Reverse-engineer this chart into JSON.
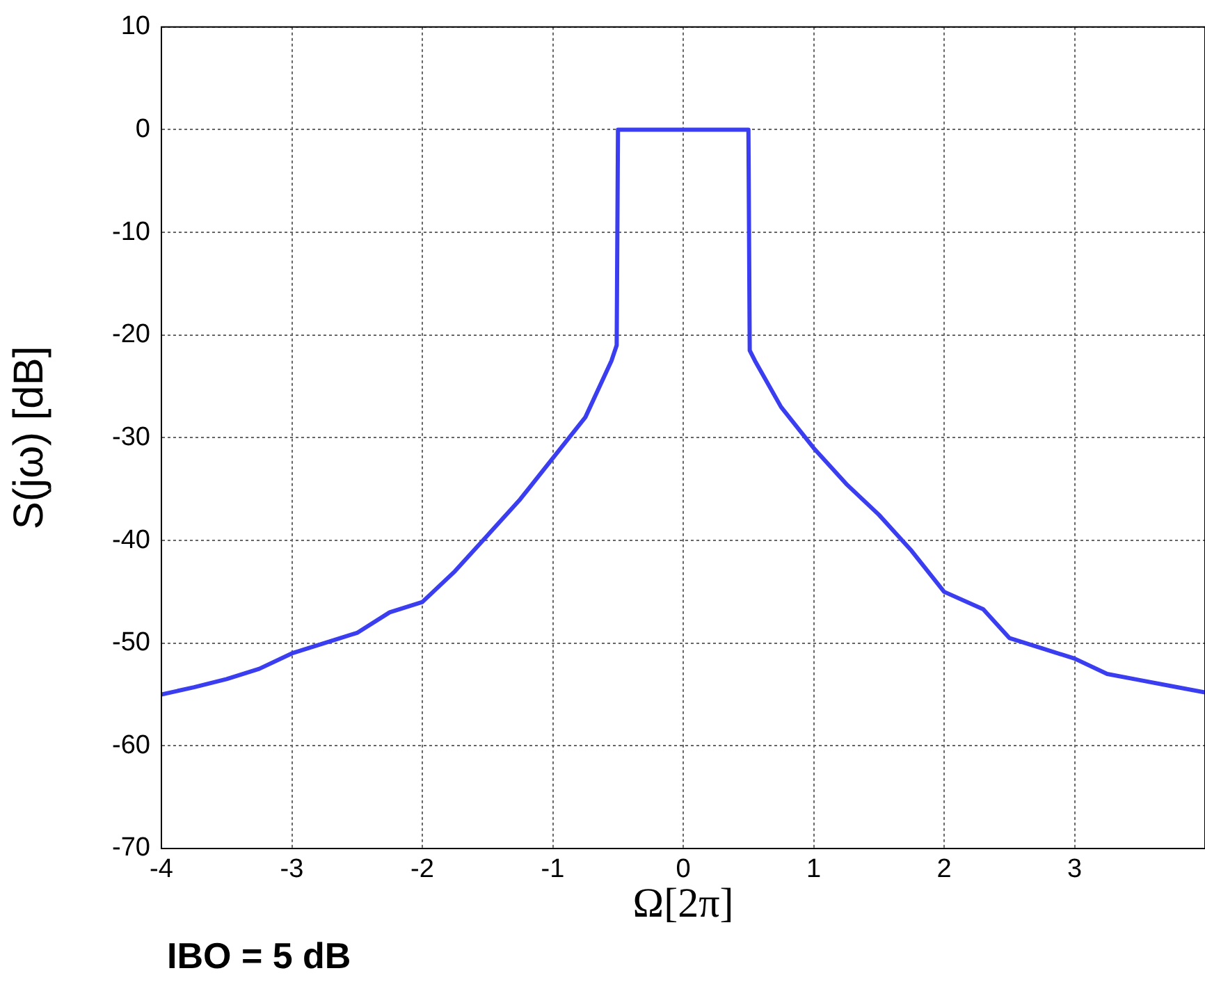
{
  "chart_data": {
    "type": "line",
    "xlabel": "Ω[2π]",
    "ylabel": "S(jω) [dB]",
    "annotations": [
      "IBO = 5 dB"
    ],
    "x": [
      -4,
      -3.75,
      -3.5,
      -3.25,
      -3,
      -2.75,
      -2.5,
      -2.25,
      -2,
      -1.75,
      -1.5,
      -1.25,
      -1,
      -0.75,
      -0.55,
      -0.51,
      -0.5,
      -0.25,
      0,
      0.25,
      0.5,
      0.51,
      0.55,
      0.75,
      1,
      1.25,
      1.5,
      1.75,
      2,
      2.3,
      2.5,
      2.75,
      3,
      3.25,
      3.5,
      3.75,
      4
    ],
    "series": [
      {
        "color": "#3a3ef0",
        "values": [
          -55,
          -54.3,
          -53.5,
          -52.5,
          -51,
          -50,
          -49,
          -47,
          -46,
          -43,
          -39.5,
          -36,
          -32,
          -28,
          -22.5,
          -21,
          0,
          0,
          0,
          0,
          0,
          -21.5,
          -22.5,
          -27,
          -31,
          -34.5,
          -37.5,
          -41,
          -45,
          -46.7,
          -49.5,
          -50.5,
          -51.5,
          -53,
          -53.6,
          -54.2,
          -54.8
        ]
      }
    ],
    "xlim": [
      -4,
      4
    ],
    "xticks": [
      -4,
      -3,
      -2,
      -1,
      0,
      1,
      2,
      3
    ],
    "ylim": [
      -70,
      10
    ],
    "yticks": [
      -70,
      -60,
      -50,
      -40,
      -30,
      -20,
      -10,
      0,
      10
    ],
    "grid": true,
    "legend": false,
    "marker": "none",
    "line_style": "solid"
  }
}
